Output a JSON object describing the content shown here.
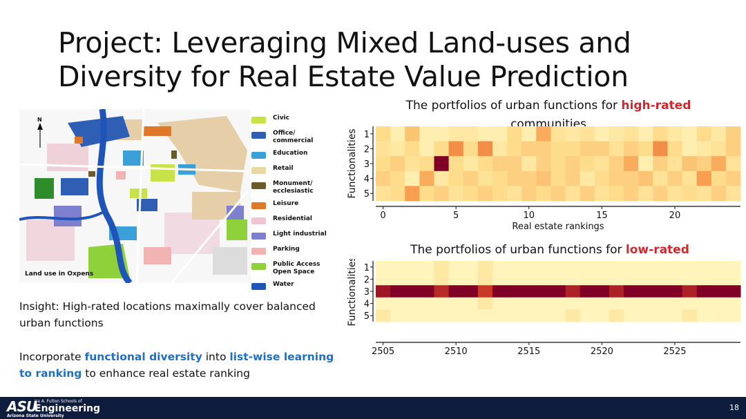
{
  "slide": {
    "title_line1": "Project: Leveraging Mixed Land-uses and",
    "title_line2": "Diversity for Real Estate Value Prediction",
    "map_caption": "Land use in Oxpens",
    "north_label": "N",
    "legend": [
      {
        "label": "Civic",
        "color": "#c8e24a"
      },
      {
        "label": "Office/ commercial",
        "color": "#2f5fb5"
      },
      {
        "label": "Education",
        "color": "#3ba0d8"
      },
      {
        "label": "Retail",
        "color": "#e8d9a0"
      },
      {
        "label": "Monument/ ecclesiastic",
        "color": "#6b5a2a"
      },
      {
        "label": "Leisure",
        "color": "#e0782a"
      },
      {
        "label": "Residential",
        "color": "#ecc7d2"
      },
      {
        "label": "Light industrial",
        "color": "#7f7fd0"
      },
      {
        "label": "Parking",
        "color": "#f2b3b3"
      },
      {
        "label": "Public Access Open Space",
        "color": "#8fd13a"
      },
      {
        "label": "Water",
        "color": "#1f55b8"
      }
    ],
    "insight": "Insight: High-rated locations maximally cover balanced urban functions",
    "incorp_1": "Incorporate ",
    "incorp_hl1": "functional diversity",
    "incorp_2": " into ",
    "incorp_hl2": "list-wise learning to ranking",
    "incorp_3": " to enhance real estate ranking",
    "footer": {
      "logo": "ASU",
      "school": "Ira A. Fulton Schools of",
      "engineering": "Engineering",
      "university": "Arizona State University",
      "page_number": "18"
    },
    "colors": {
      "footer_bg": "#0e1c3e",
      "accent_blue": "#1f6fc6",
      "accent_red": "#d4262c"
    }
  },
  "chart_data": [
    {
      "type": "heatmap",
      "title_prefix": "The portfolios of urban functions for ",
      "title_highlight": "high-rated",
      "title_suffix": " communities",
      "xlabel": "Real estate rankings",
      "ylabel": "Functionalities",
      "x_ticks": [
        "0",
        "5",
        "10",
        "15",
        "20"
      ],
      "x_tick_values": [
        0,
        5,
        10,
        15,
        20
      ],
      "x_range": [
        0,
        24
      ],
      "y_ticks": [
        "1",
        "2",
        "3",
        "4",
        "5"
      ],
      "values": [
        [
          0.25,
          0.1,
          0.35,
          0.1,
          0.1,
          0.15,
          0.15,
          0.1,
          0.1,
          0.25,
          0.1,
          0.45,
          0.2,
          0.15,
          0.2,
          0.1,
          0.15,
          0.2,
          0.1,
          0.25,
          0.15,
          0.1,
          0.25,
          0.15,
          0.3
        ],
        [
          0.2,
          0.15,
          0.25,
          0.1,
          0.25,
          0.55,
          0.25,
          0.55,
          0.15,
          0.25,
          0.3,
          0.3,
          0.25,
          0.25,
          0.3,
          0.3,
          0.2,
          0.3,
          0.25,
          0.55,
          0.25,
          0.1,
          0.15,
          0.2,
          0.3
        ],
        [
          0.25,
          0.3,
          0.2,
          0.25,
          1.0,
          0.25,
          0.15,
          0.25,
          0.3,
          0.3,
          0.15,
          0.3,
          0.25,
          0.3,
          0.25,
          0.2,
          0.3,
          0.45,
          0.1,
          0.3,
          0.2,
          0.35,
          0.3,
          0.45,
          0.2
        ],
        [
          0.3,
          0.25,
          0.1,
          0.45,
          0.15,
          0.25,
          0.3,
          0.2,
          0.25,
          0.3,
          0.3,
          0.35,
          0.25,
          0.3,
          0.15,
          0.25,
          0.3,
          0.3,
          0.35,
          0.2,
          0.3,
          0.2,
          0.5,
          0.25,
          0.3
        ],
        [
          0.2,
          0.25,
          0.5,
          0.25,
          0.3,
          0.2,
          0.25,
          0.3,
          0.25,
          0.2,
          0.3,
          0.25,
          0.3,
          0.2,
          0.3,
          0.2,
          0.25,
          0.3,
          0.2,
          0.3,
          0.2,
          0.25,
          0.2,
          0.3,
          0.2
        ]
      ]
    },
    {
      "type": "heatmap",
      "title_prefix": "The portfolios of urban functions for ",
      "title_highlight": "low-rated",
      "title_suffix": " communities",
      "xlabel": "",
      "ylabel": "Functionalities",
      "x_ticks": [
        "2505",
        "2510",
        "2515",
        "2520",
        "2525"
      ],
      "x_tick_values": [
        2505,
        2510,
        2515,
        2520,
        2525
      ],
      "x_range": [
        2505,
        2529
      ],
      "y_ticks": [
        "1",
        "2",
        "3",
        "4",
        "5"
      ],
      "values": [
        [
          0.05,
          0.05,
          0.05,
          0.05,
          0.15,
          0.05,
          0.05,
          0.15,
          0.05,
          0.05,
          0.05,
          0.05,
          0.05,
          0.05,
          0.05,
          0.05,
          0.05,
          0.05,
          0.05,
          0.05,
          0.05,
          0.05,
          0.05,
          0.05,
          0.05
        ],
        [
          0.05,
          0.05,
          0.05,
          0.05,
          0.15,
          0.05,
          0.05,
          0.15,
          0.05,
          0.05,
          0.05,
          0.05,
          0.05,
          0.05,
          0.05,
          0.05,
          0.05,
          0.05,
          0.05,
          0.05,
          0.05,
          0.05,
          0.05,
          0.05,
          0.05
        ],
        [
          0.92,
          1.0,
          1.0,
          1.0,
          0.85,
          1.0,
          1.0,
          0.8,
          1.0,
          1.0,
          1.0,
          1.0,
          1.0,
          0.88,
          1.0,
          1.0,
          0.88,
          1.0,
          1.0,
          1.0,
          1.0,
          0.88,
          1.0,
          1.0,
          1.0
        ],
        [
          0.05,
          0.05,
          0.05,
          0.05,
          0.05,
          0.05,
          0.05,
          0.15,
          0.05,
          0.05,
          0.05,
          0.05,
          0.05,
          0.05,
          0.05,
          0.05,
          0.05,
          0.05,
          0.05,
          0.05,
          0.05,
          0.05,
          0.05,
          0.05,
          0.05
        ],
        [
          0.15,
          0.05,
          0.05,
          0.05,
          0.05,
          0.05,
          0.05,
          0.05,
          0.05,
          0.05,
          0.05,
          0.05,
          0.05,
          0.15,
          0.05,
          0.05,
          0.15,
          0.05,
          0.05,
          0.05,
          0.05,
          0.15,
          0.05,
          0.05,
          0.05
        ]
      ]
    }
  ]
}
